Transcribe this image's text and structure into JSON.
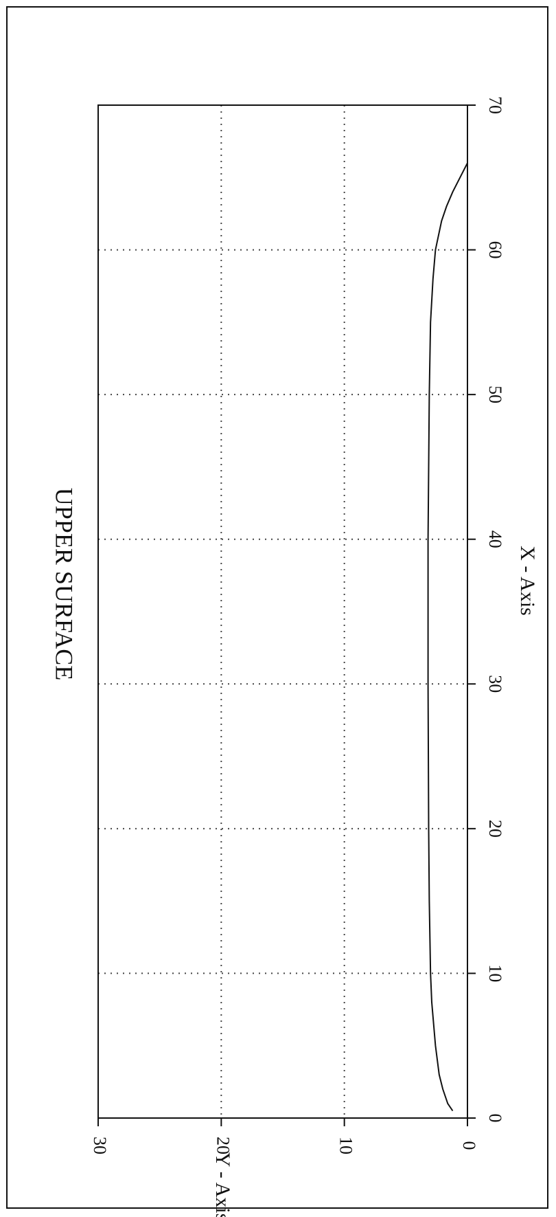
{
  "chart_data": {
    "type": "line",
    "title": "UPPER SURFACE",
    "xlabel": "X - Axis",
    "ylabel": "Y - Axis",
    "xlim": [
      0,
      70
    ],
    "ylim": [
      0,
      30
    ],
    "x_ticks": [
      "0",
      "10",
      "20",
      "30",
      "40",
      "50",
      "60",
      "70"
    ],
    "y_ticks": [
      "0",
      "10",
      "20",
      "30"
    ],
    "grid": true,
    "orientation": "rotated-90-clockwise",
    "series": [
      {
        "x": [
          0.5,
          1,
          2,
          3,
          5,
          8,
          10,
          15,
          20,
          30,
          40,
          50,
          55,
          58,
          60,
          62,
          63,
          64,
          65,
          66
        ],
        "y": [
          1.2,
          1.6,
          2.0,
          2.3,
          2.6,
          2.9,
          3.0,
          3.1,
          3.15,
          3.2,
          3.2,
          3.1,
          3.0,
          2.8,
          2.6,
          2.1,
          1.7,
          1.2,
          0.6,
          0.0
        ]
      }
    ]
  }
}
